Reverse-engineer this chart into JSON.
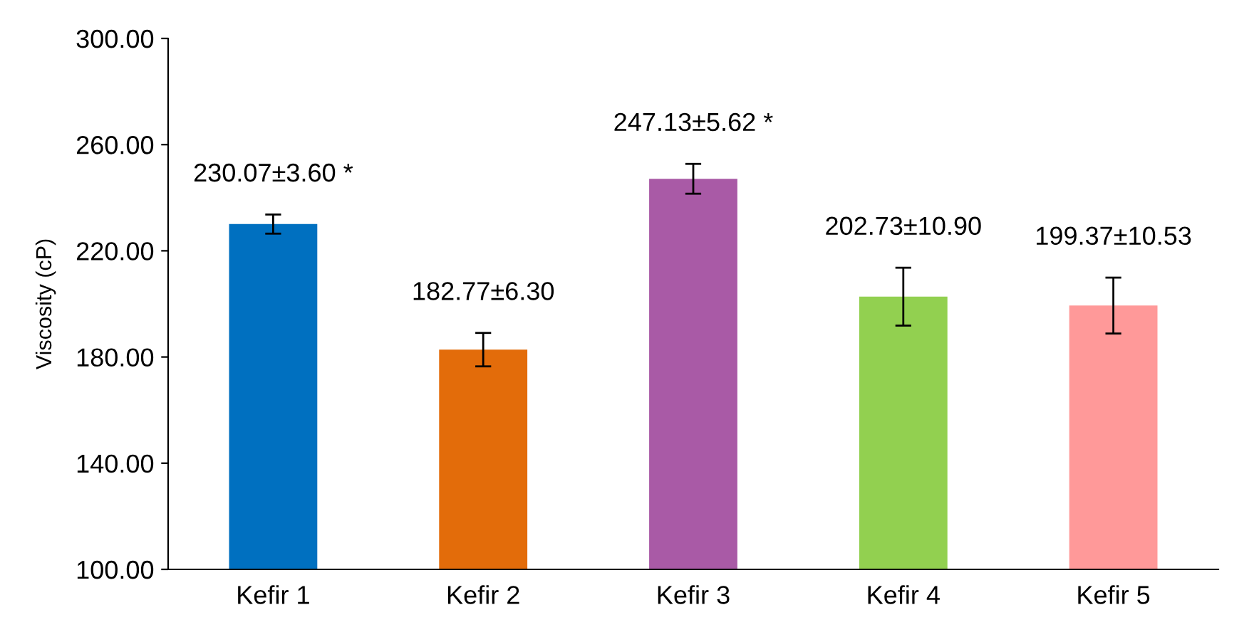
{
  "chart_data": {
    "type": "bar",
    "ylabel": "Viscosity (cP)",
    "categories": [
      "Kefir 1",
      "Kefir 2",
      "Kefir 3",
      "Kefir 4",
      "Kefir 5"
    ],
    "values": [
      230.07,
      182.77,
      247.13,
      202.73,
      199.37
    ],
    "errors": [
      3.6,
      6.3,
      5.62,
      10.9,
      10.53
    ],
    "colors": [
      "#0070c0",
      "#e36c0a",
      "#a95aa6",
      "#92d050",
      "#ff9999"
    ],
    "value_labels": [
      "230.07±3.60 *",
      "182.77±6.30",
      "247.13±5.62 *",
      "202.73±10.90",
      "199.37±10.53"
    ],
    "ylim": [
      100,
      300
    ],
    "yticks": [
      {
        "value": 100,
        "label": "100.00"
      },
      {
        "value": 140,
        "label": "140.00"
      },
      {
        "value": 180,
        "label": "180.00"
      },
      {
        "value": 220,
        "label": "220.00"
      },
      {
        "value": 260,
        "label": "260.00"
      },
      {
        "value": 300,
        "label": "300.00"
      }
    ],
    "grid": false,
    "legend": false
  }
}
